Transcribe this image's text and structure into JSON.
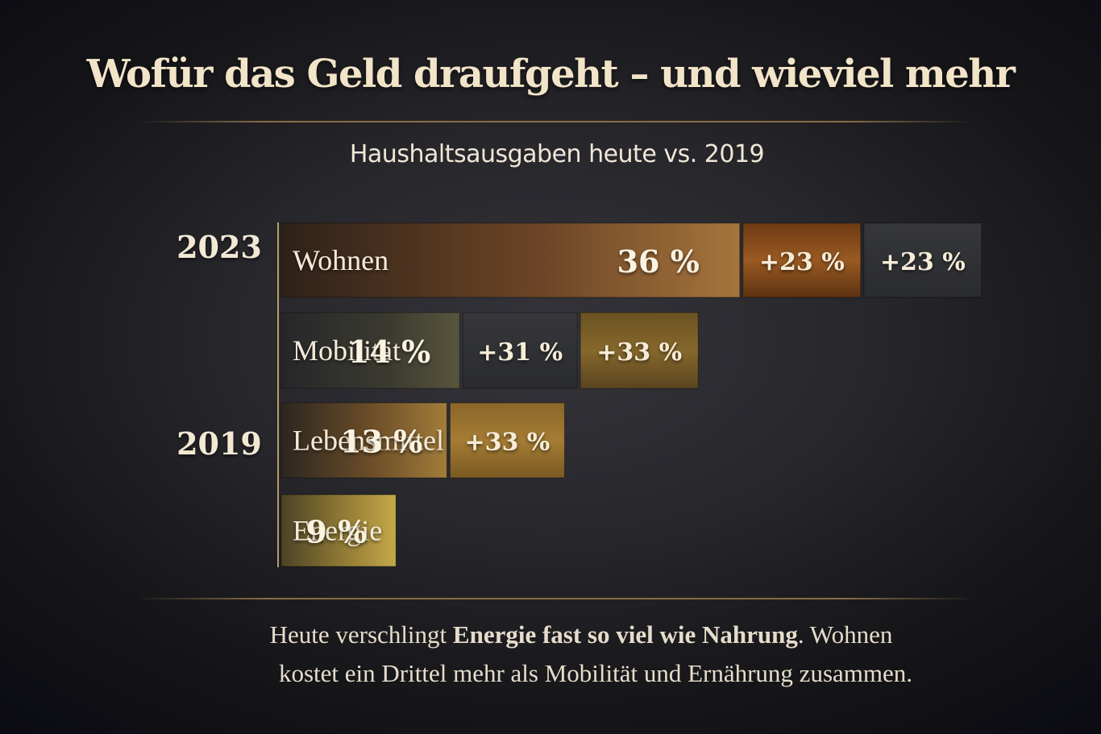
{
  "title": "Wofür das Geld draufgeht – und wieviel mehr",
  "subtitle": "Haushaltsausgaben heute vs. 2019",
  "chart_data": {
    "type": "bar",
    "title": "Wofür das Geld draufgeht – und wieviel mehr",
    "subtitle": "Haushaltsausgaben heute vs. 2019",
    "year_labels": [
      "2023",
      "2019"
    ],
    "categories": [
      "Wohnen",
      "Mobilität",
      "Lebensmittel",
      "Energie"
    ],
    "shares_percent": [
      36,
      14,
      13,
      9
    ],
    "share_labels": [
      "36 %",
      "14 %",
      "13 %",
      "9 %"
    ],
    "increases_percent": [
      [
        23,
        23
      ],
      [
        31,
        33
      ],
      [
        33
      ],
      []
    ],
    "increase_labels": [
      [
        "+23 %",
        "+23 %"
      ],
      [
        "+31 %",
        "+33 %"
      ],
      [
        "+33 %"
      ],
      []
    ],
    "colors": {
      "Wohnen": "#8a5a2c",
      "Mobilität": "#4e4a38",
      "Lebensmittel": "#8c6a32",
      "Energie": "#b0943c"
    },
    "legend": "none",
    "grid": false
  },
  "footnote": {
    "line1_parts": [
      "Heute verschlingt ",
      "Energie fast so viel wie ",
      "Nahrung",
      ". Wohnen"
    ],
    "line2": "kostet ein Drittel mehr als Mobilität und Ernährung zusammen."
  }
}
